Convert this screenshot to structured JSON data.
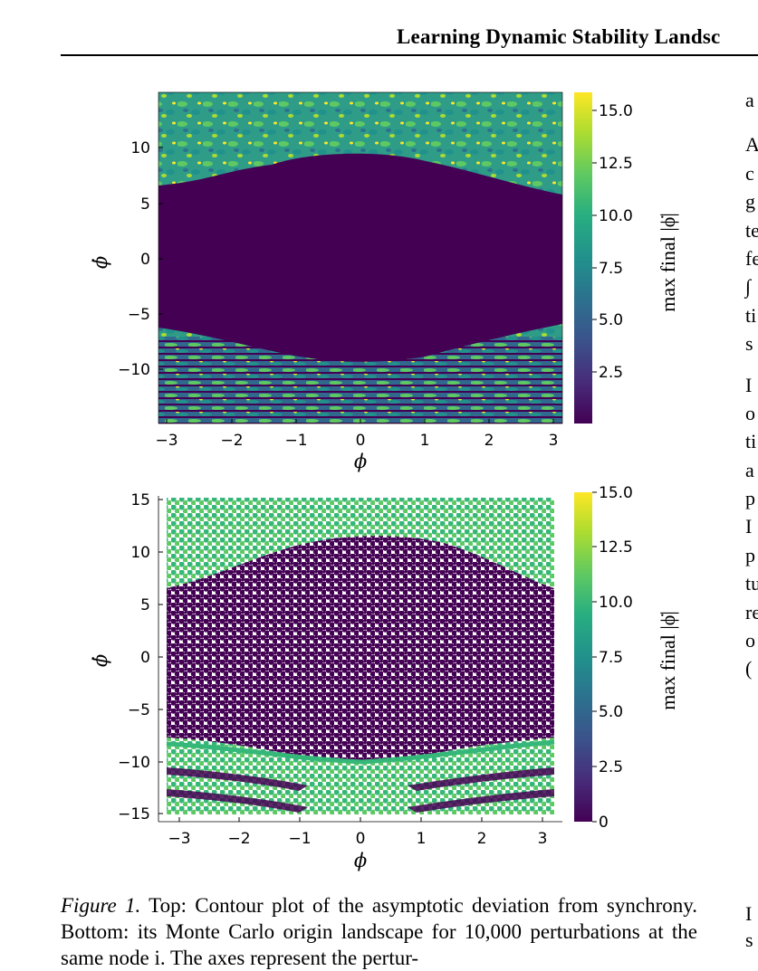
{
  "header": {
    "title": "Learning Dynamic Stability Landsc"
  },
  "right_column_fragments": {
    "block1": [
      "a"
    ],
    "block2": [
      "A",
      "c",
      "g",
      "te",
      "fe",
      "∫",
      "ti",
      "s"
    ],
    "block3": [
      "I",
      "o",
      "ti",
      "a",
      "p",
      "I",
      "p",
      "tu",
      "re",
      "o",
      "("
    ],
    "block4": [
      "I",
      "s"
    ]
  },
  "figure": {
    "top_panel": {
      "xlabel": "ϕ",
      "ylabel": "ϕ̇",
      "xticks": [
        "−3",
        "−2",
        "−1",
        "0",
        "1",
        "2",
        "3"
      ],
      "yticks": [
        "10",
        "5",
        "0",
        "−5",
        "−10"
      ],
      "colorbar_ticks": [
        "15.0",
        "12.5",
        "10.0",
        "7.5",
        "5.0",
        "2.5"
      ],
      "colorbar_label": "max final |ϕ̇|"
    },
    "bottom_panel": {
      "xlabel": "ϕ",
      "ylabel": "ϕ̇",
      "xticks": [
        "−3",
        "−2",
        "−1",
        "0",
        "1",
        "2",
        "3"
      ],
      "yticks": [
        "15",
        "10",
        "5",
        "0",
        "−5",
        "−10",
        "−15"
      ],
      "colorbar_ticks": [
        "15.0",
        "12.5",
        "10.0",
        "7.5",
        "5.0",
        "2.5",
        "0"
      ],
      "colorbar_label": "max final |ϕ̇|"
    },
    "colors": {
      "low": "#440154",
      "mid": "#21918c",
      "high": "#5ec962",
      "top": "#fde725"
    }
  },
  "caption": {
    "label": "Figure 1.",
    "text": "Top: Contour plot of the asymptotic deviation from synchrony. Bottom: its Monte Carlo origin landscape for 10,000 perturbations at the same node i. The axes represent the pertur-"
  }
}
